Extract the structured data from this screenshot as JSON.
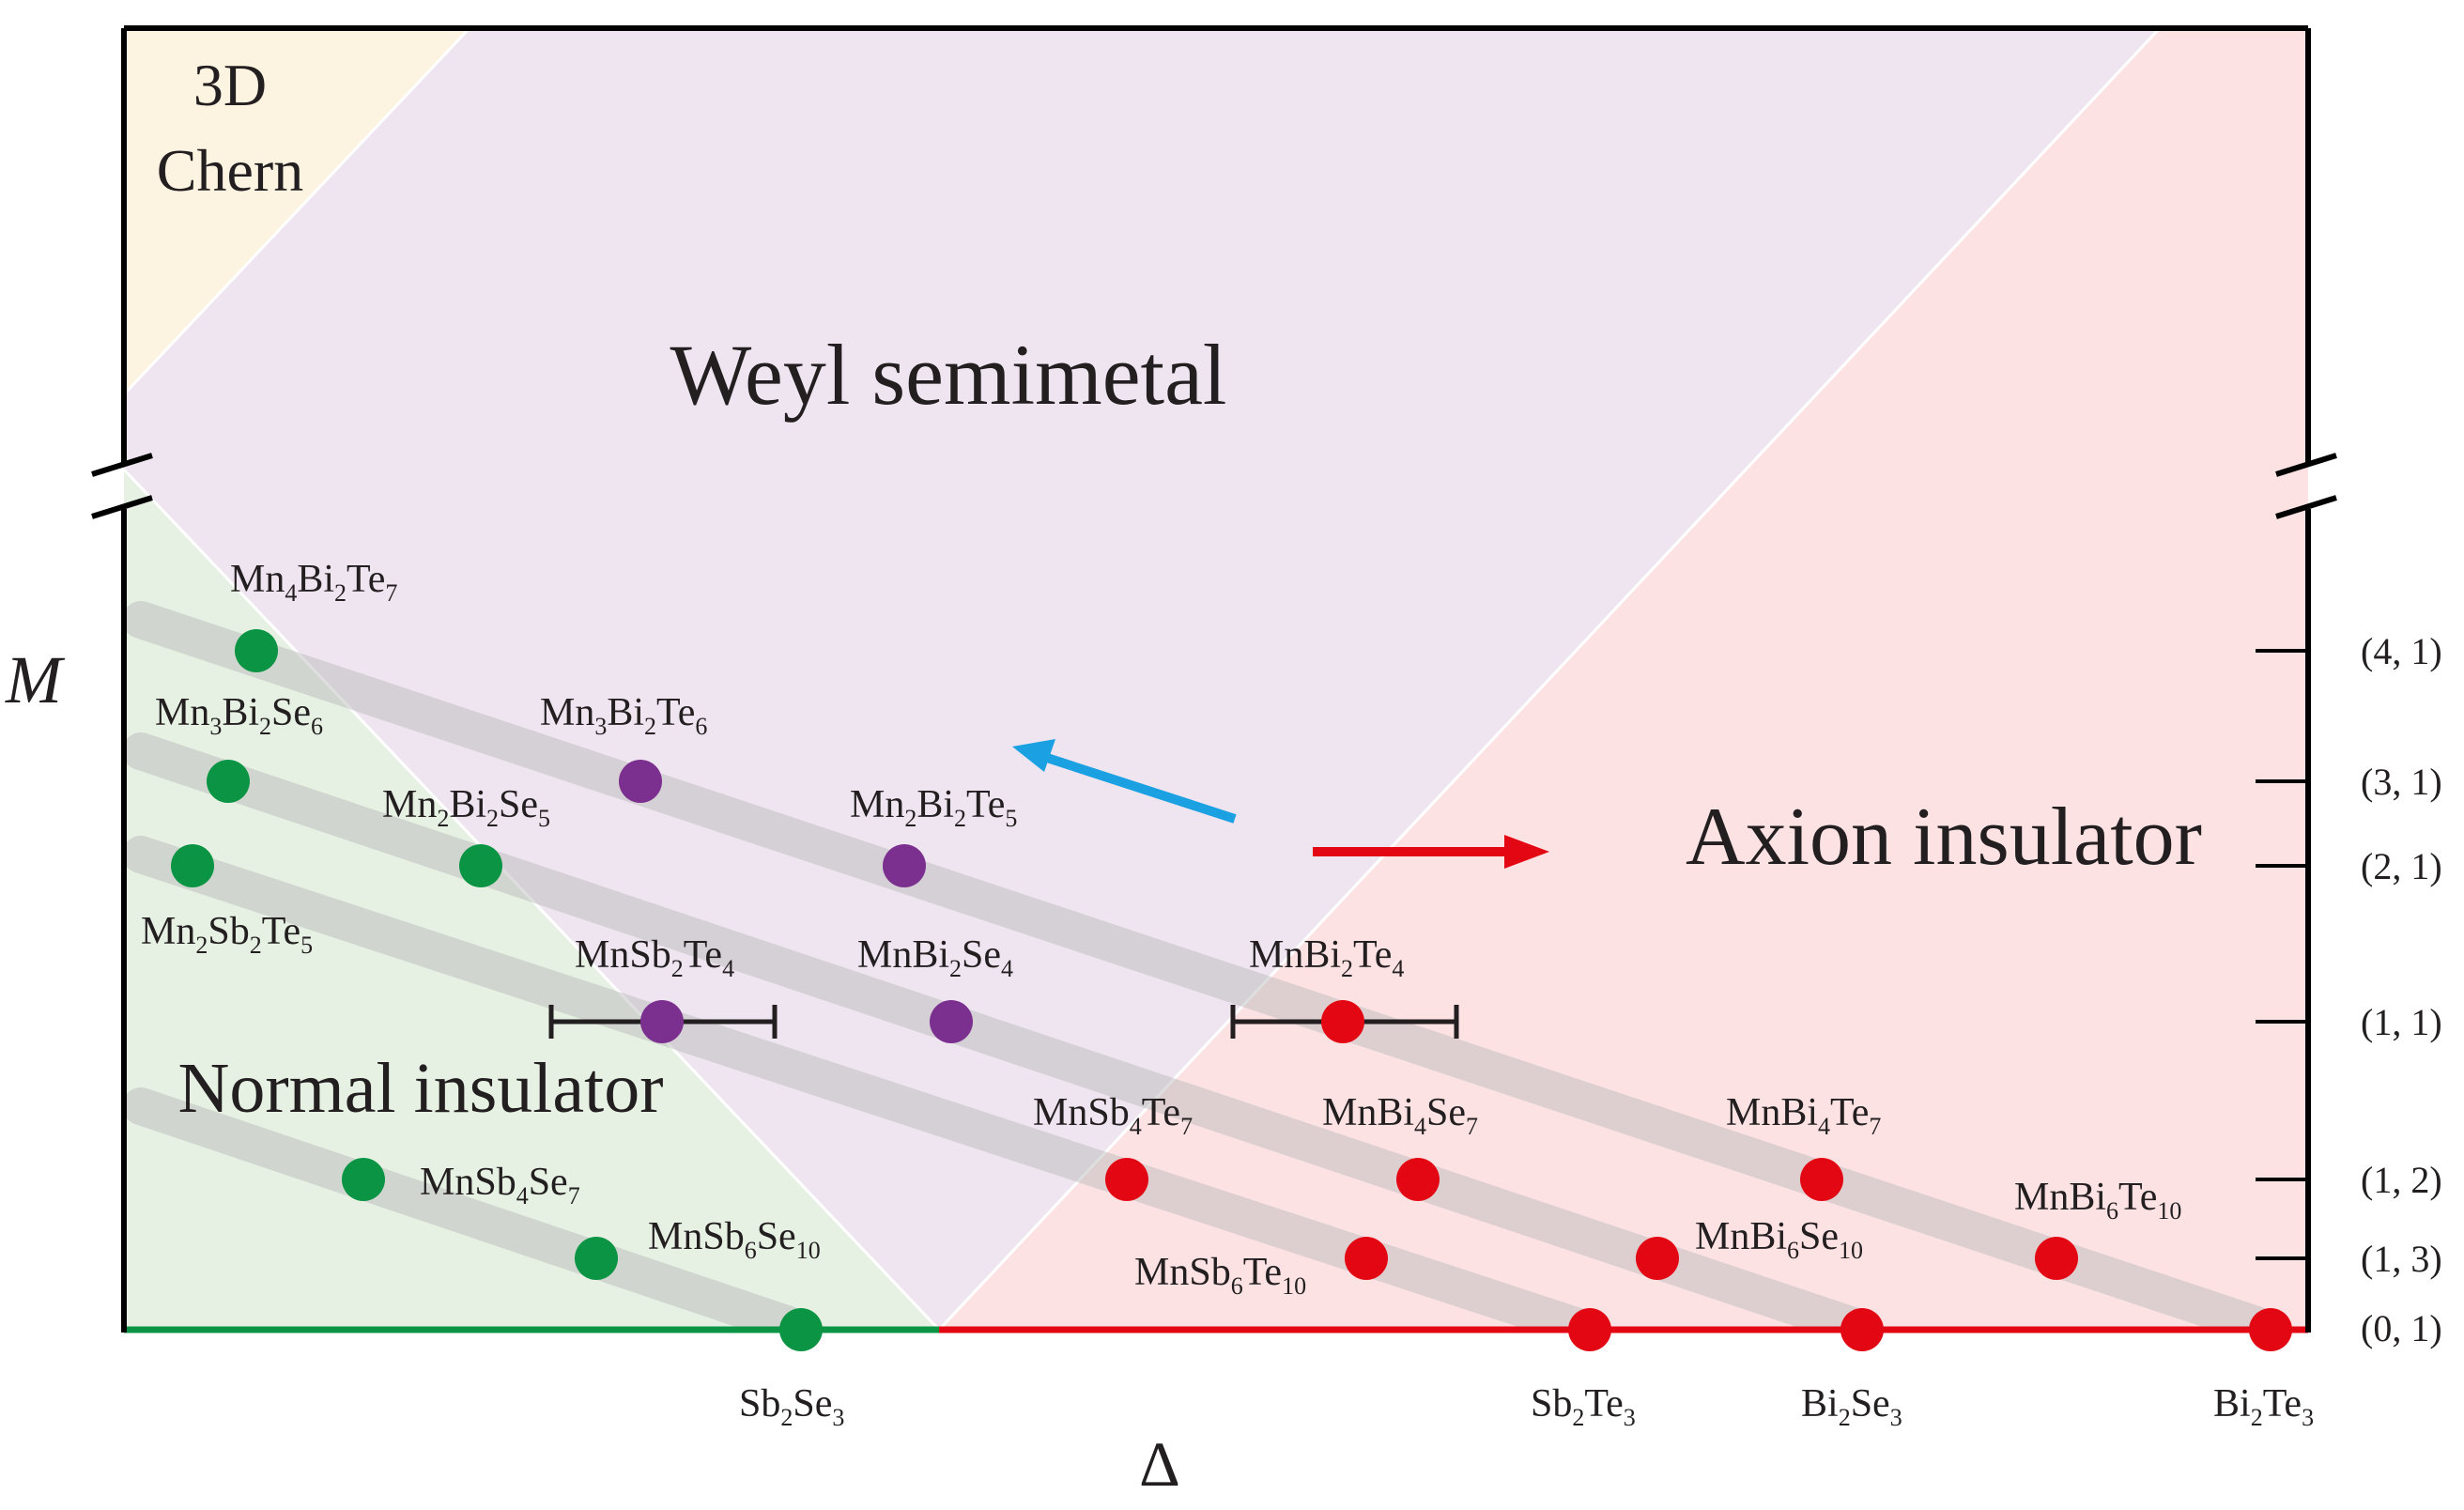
{
  "regions": [
    {
      "key": "chern",
      "label_lines": [
        "3D",
        "Chern"
      ],
      "color": "#fdf3e1"
    },
    {
      "key": "weyl",
      "label_lines": [
        "Weyl semimetal"
      ],
      "color": "#efe5f1"
    },
    {
      "key": "axion",
      "label_lines": [
        "Axion insulator"
      ],
      "color": "#fde2e4"
    },
    {
      "key": "normal",
      "label_lines": [
        "Normal insulator"
      ],
      "color": "#e6f1e3"
    }
  ],
  "axes": {
    "y_symbol": "M",
    "x_symbol": "Δ"
  },
  "right_ticks": [
    {
      "label": "(4, 1)"
    },
    {
      "label": "(3, 1)"
    },
    {
      "label": "(2, 1)"
    },
    {
      "label": "(1, 1)"
    },
    {
      "label": "(1, 2)"
    },
    {
      "label": "(1, 3)"
    },
    {
      "label": "(0, 1)"
    }
  ],
  "materials": [
    {
      "id": "mn4bi2te7",
      "parts": [
        [
          "Mn",
          ""
        ],
        [
          "4",
          "sub"
        ],
        [
          "Bi",
          ""
        ],
        [
          "2",
          "sub"
        ],
        [
          "Te",
          ""
        ],
        [
          "7",
          "sub"
        ]
      ],
      "phase": "normal"
    },
    {
      "id": "mn3bi2se6",
      "parts": [
        [
          "Mn",
          ""
        ],
        [
          "3",
          "sub"
        ],
        [
          "Bi",
          ""
        ],
        [
          "2",
          "sub"
        ],
        [
          "Se",
          ""
        ],
        [
          "6",
          "sub"
        ]
      ],
      "phase": "normal"
    },
    {
      "id": "mn2sb2te5",
      "parts": [
        [
          "Mn",
          ""
        ],
        [
          "2",
          "sub"
        ],
        [
          "Sb",
          ""
        ],
        [
          "2",
          "sub"
        ],
        [
          "Te",
          ""
        ],
        [
          "5",
          "sub"
        ]
      ],
      "phase": "normal"
    },
    {
      "id": "mn2bi2se5",
      "parts": [
        [
          "Mn",
          ""
        ],
        [
          "2",
          "sub"
        ],
        [
          "Bi",
          ""
        ],
        [
          "2",
          "sub"
        ],
        [
          "Se",
          ""
        ],
        [
          "5",
          "sub"
        ]
      ],
      "phase": "normal"
    },
    {
      "id": "mn3bi2te6",
      "parts": [
        [
          "Mn",
          ""
        ],
        [
          "3",
          "sub"
        ],
        [
          "Bi",
          ""
        ],
        [
          "2",
          "sub"
        ],
        [
          "Te",
          ""
        ],
        [
          "6",
          "sub"
        ]
      ],
      "phase": "weyl"
    },
    {
      "id": "mn2bi2te5",
      "parts": [
        [
          "Mn",
          ""
        ],
        [
          "2",
          "sub"
        ],
        [
          "Bi",
          ""
        ],
        [
          "2",
          "sub"
        ],
        [
          "Te",
          ""
        ],
        [
          "5",
          "sub"
        ]
      ],
      "phase": "weyl"
    },
    {
      "id": "mnsb2te4",
      "parts": [
        [
          "MnSb",
          ""
        ],
        [
          "2",
          "sub"
        ],
        [
          "Te",
          ""
        ],
        [
          "4",
          "sub"
        ]
      ],
      "phase": "weyl"
    },
    {
      "id": "mnbi2se4",
      "parts": [
        [
          "MnBi",
          ""
        ],
        [
          "2",
          "sub"
        ],
        [
          "Se",
          ""
        ],
        [
          "4",
          "sub"
        ]
      ],
      "phase": "weyl"
    },
    {
      "id": "mnbi2te4",
      "parts": [
        [
          "MnBi",
          ""
        ],
        [
          "2",
          "sub"
        ],
        [
          "Te",
          ""
        ],
        [
          "4",
          "sub"
        ]
      ],
      "phase": "axion"
    },
    {
      "id": "mnsb4se7",
      "parts": [
        [
          "MnSb",
          ""
        ],
        [
          "4",
          "sub"
        ],
        [
          "Se",
          ""
        ],
        [
          "7",
          "sub"
        ]
      ],
      "phase": "normal"
    },
    {
      "id": "mnsb6se10",
      "parts": [
        [
          "MnSb",
          ""
        ],
        [
          "6",
          "sub"
        ],
        [
          "Se",
          ""
        ],
        [
          "10",
          "sub"
        ]
      ],
      "phase": "normal"
    },
    {
      "id": "mnsb4te7",
      "parts": [
        [
          "MnSb",
          ""
        ],
        [
          "4",
          "sub"
        ],
        [
          "Te",
          ""
        ],
        [
          "7",
          "sub"
        ]
      ],
      "phase": "axion"
    },
    {
      "id": "mnbi4se7",
      "parts": [
        [
          "MnBi",
          ""
        ],
        [
          "4",
          "sub"
        ],
        [
          "Se",
          ""
        ],
        [
          "7",
          "sub"
        ]
      ],
      "phase": "axion"
    },
    {
      "id": "mnbi4te7",
      "parts": [
        [
          "MnBi",
          ""
        ],
        [
          "4",
          "sub"
        ],
        [
          "Te",
          ""
        ],
        [
          "7",
          "sub"
        ]
      ],
      "phase": "axion"
    },
    {
      "id": "mnsb6te10",
      "parts": [
        [
          "MnSb",
          ""
        ],
        [
          "6",
          "sub"
        ],
        [
          "Te",
          ""
        ],
        [
          "10",
          "sub"
        ]
      ],
      "phase": "axion"
    },
    {
      "id": "mnbi6se10",
      "parts": [
        [
          "MnBi",
          ""
        ],
        [
          "6",
          "sub"
        ],
        [
          "Se",
          ""
        ],
        [
          "10",
          "sub"
        ]
      ],
      "phase": "axion"
    },
    {
      "id": "mnbi6te10",
      "parts": [
        [
          "MnBi",
          ""
        ],
        [
          "6",
          "sub"
        ],
        [
          "Te",
          ""
        ],
        [
          "10",
          "sub"
        ]
      ],
      "phase": "axion"
    },
    {
      "id": "sb2se3",
      "parts": [
        [
          "Sb",
          ""
        ],
        [
          "2",
          "sub"
        ],
        [
          "Se",
          ""
        ],
        [
          "3",
          "sub"
        ]
      ],
      "phase": "normal"
    },
    {
      "id": "sb2te3",
      "parts": [
        [
          "Sb",
          ""
        ],
        [
          "2",
          "sub"
        ],
        [
          "Te",
          ""
        ],
        [
          "3",
          "sub"
        ]
      ],
      "phase": "axion"
    },
    {
      "id": "bi2se3",
      "parts": [
        [
          "Bi",
          ""
        ],
        [
          "2",
          "sub"
        ],
        [
          "Se",
          ""
        ],
        [
          "3",
          "sub"
        ]
      ],
      "phase": "axion"
    },
    {
      "id": "bi2te3",
      "parts": [
        [
          "Bi",
          ""
        ],
        [
          "2",
          "sub"
        ],
        [
          "Te",
          ""
        ],
        [
          "3",
          "sub"
        ]
      ],
      "phase": "axion"
    }
  ],
  "phase_colors": {
    "normal": "#0b9444",
    "weyl": "#7b2f8e",
    "axion": "#e30613"
  },
  "arrow_colors": {
    "blue": "#1ba1e2",
    "red": "#e30613"
  },
  "trend_band_color": "#b5b5b5",
  "frame_color": "#000000"
}
